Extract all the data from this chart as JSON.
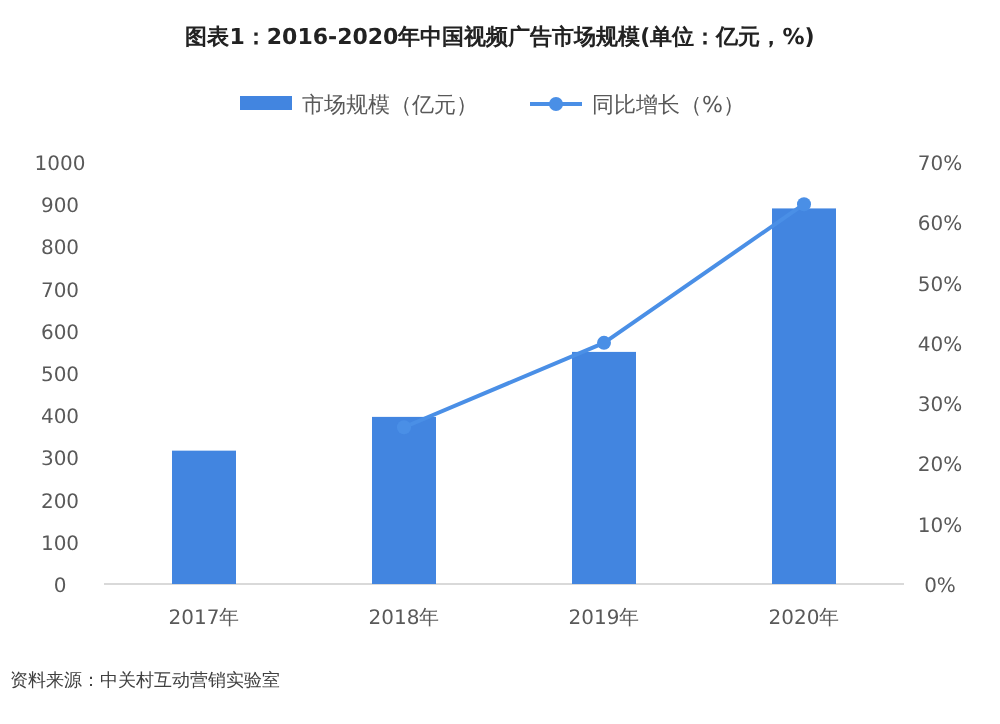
{
  "chart_data": {
    "type": "bar",
    "title": "图表1：2016-2020年中国视频广告市场规模(单位：亿元，%)",
    "categories": [
      "2017年",
      "2018年",
      "2019年",
      "2020年"
    ],
    "series": [
      {
        "name": "市场规模（亿元）",
        "color": "#4285e0",
        "values": [
          316,
          396,
          550,
          890
        ]
      },
      {
        "name": "同比增长（%）",
        "type": "line",
        "axis": "y2",
        "color": "#4a8fe6",
        "marker": "circle",
        "values": [
          null,
          26,
          40,
          63
        ]
      }
    ],
    "ylim": [
      0,
      1000
    ],
    "yticks": [
      0,
      100,
      200,
      300,
      400,
      500,
      600,
      700,
      800,
      900,
      1000
    ],
    "y2lim": [
      0,
      70
    ],
    "y2ticks": [
      {
        "value": 0,
        "label": "0%"
      },
      {
        "value": 10,
        "label": "10%"
      },
      {
        "value": 20,
        "label": "20%"
      },
      {
        "value": 30,
        "label": "30%"
      },
      {
        "value": 40,
        "label": "40%"
      },
      {
        "value": 50,
        "label": "50%"
      },
      {
        "value": 60,
        "label": "60%"
      },
      {
        "value": 70,
        "label": "70%"
      }
    ],
    "legend": "top",
    "grid": false,
    "annotations": [
      "资料来源：中关村互动营销实验室"
    ]
  }
}
